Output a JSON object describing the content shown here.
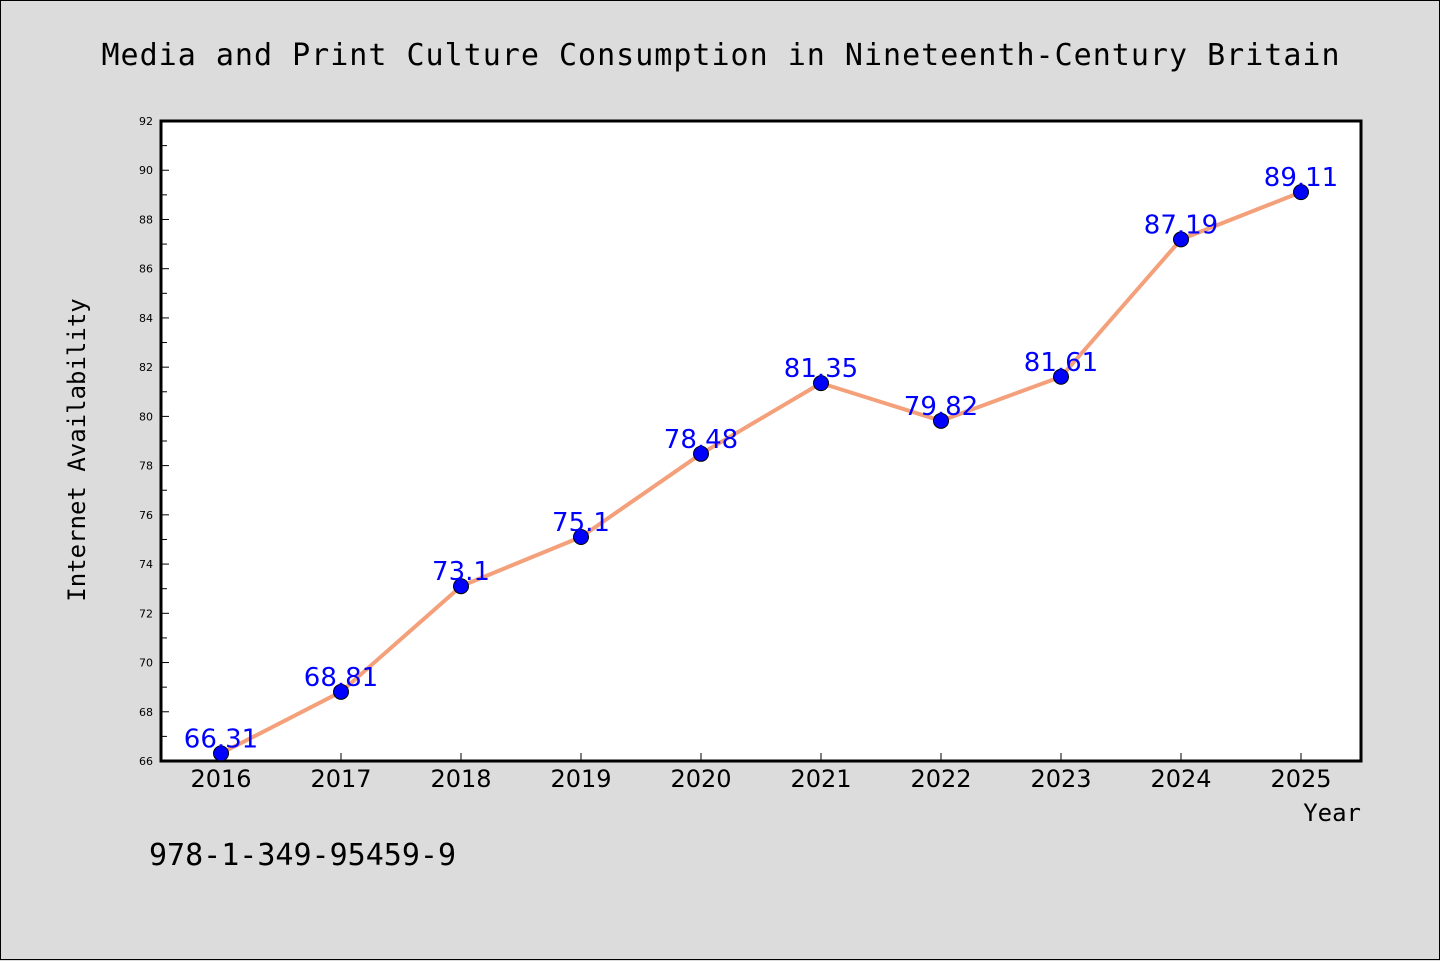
{
  "chart_data": {
    "type": "line",
    "title": "Media and Print Culture Consumption in Nineteenth-Century Britain",
    "xlabel": "Year",
    "ylabel": "Internet Availability",
    "categories": [
      "2016",
      "2017",
      "2018",
      "2019",
      "2020",
      "2021",
      "2022",
      "2023",
      "2024",
      "2025"
    ],
    "series": [
      {
        "values": [
          66.31,
          68.81,
          73.1,
          75.1,
          78.48,
          81.35,
          79.82,
          81.61,
          87.19,
          89.11
        ],
        "data_labels": [
          "66.31",
          "68.81",
          "73.1",
          "75.1",
          "78.48",
          "81.35",
          "79.82",
          "81.61",
          "87.19",
          "89.11"
        ],
        "line_color": "#f4a07a",
        "marker_color": "#0000ff"
      }
    ],
    "ylim": [
      66,
      92
    ],
    "y_ticks": [
      "66",
      "68",
      "70",
      "72",
      "74",
      "76",
      "78",
      "80",
      "82",
      "84",
      "86",
      "88",
      "90",
      "92"
    ],
    "grid": false,
    "legend": "none"
  },
  "footer": {
    "isbn": "978-1-349-95459-9"
  },
  "colors": {
    "background": "#dcdcdc",
    "plot_background": "#ffffff",
    "line": "#f4a07a",
    "marker": "#0000ff",
    "data_label": "#0000ff"
  }
}
